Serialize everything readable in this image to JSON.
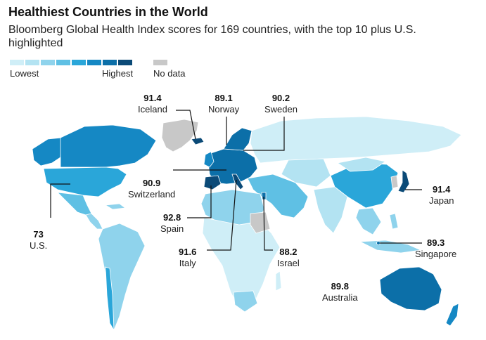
{
  "title": "Healthiest Countries in the World",
  "subtitle": "Bloomberg Global Health Index scores for 169 countries, with the top 10 plus U.S. highlighted",
  "legend": {
    "low_label": "Lowest",
    "high_label": "Highest",
    "nodata_label": "No data",
    "colors": [
      "#cfeef7",
      "#b3e3f2",
      "#8fd3ec",
      "#5fc0e4",
      "#2aa6d9",
      "#1588c4",
      "#0c6fa8",
      "#0b4a77"
    ],
    "nodata_color": "#c8c8c8"
  },
  "callouts": [
    {
      "country": "Iceland",
      "score": "91.4"
    },
    {
      "country": "Norway",
      "score": "89.1"
    },
    {
      "country": "Sweden",
      "score": "90.2"
    },
    {
      "country": "Switzerland",
      "score": "90.9"
    },
    {
      "country": "Spain",
      "score": "92.8"
    },
    {
      "country": "Italy",
      "score": "91.6"
    },
    {
      "country": "Israel",
      "score": "88.2"
    },
    {
      "country": "Japan",
      "score": "91.4"
    },
    {
      "country": "Singapore",
      "score": "89.3"
    },
    {
      "country": "Australia",
      "score": "89.8"
    },
    {
      "country": "U.S.",
      "score": "73"
    }
  ]
}
